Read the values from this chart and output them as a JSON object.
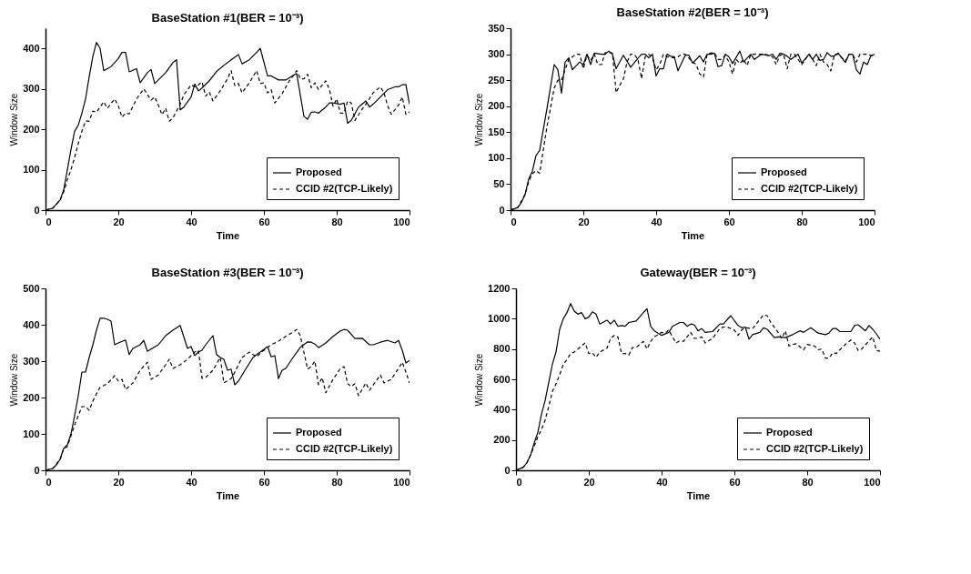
{
  "chart_data": [
    {
      "type": "line",
      "title": "BaseStation #1(BER = 10⁻³)",
      "xlabel": "Time",
      "ylabel": "Window Size",
      "xlim": [
        0,
        100
      ],
      "xticks": [
        0,
        20,
        40,
        60,
        80,
        100
      ],
      "ylim": [
        0,
        450
      ],
      "yticks": [
        0,
        100,
        200,
        300,
        400
      ],
      "legend": "bottom right",
      "series": [
        {
          "name": "Proposed",
          "color": "#000000",
          "line_style": "solid",
          "x": [
            0,
            2,
            4,
            5,
            6,
            7,
            8,
            9,
            10,
            11,
            12,
            13,
            14,
            15,
            16,
            17,
            18,
            19,
            20,
            21,
            22,
            23,
            25,
            26,
            28,
            29,
            30,
            31,
            33,
            35,
            36,
            37,
            38,
            40,
            41,
            42,
            43,
            45,
            47,
            49,
            51,
            53,
            54,
            56,
            58,
            59,
            61,
            62,
            64,
            66,
            68,
            69,
            71,
            72,
            73,
            74,
            75,
            77,
            78,
            79,
            81,
            82,
            83,
            84,
            86,
            88,
            89,
            90,
            92,
            94,
            96,
            97,
            98,
            99,
            100
          ],
          "values": [
            0,
            5,
            25,
            50,
            100,
            150,
            195,
            210,
            240,
            275,
            330,
            380,
            415,
            400,
            345,
            350,
            355,
            365,
            375,
            390,
            390,
            342,
            350,
            315,
            340,
            348,
            313,
            322,
            340,
            365,
            372,
            248,
            255,
            280,
            312,
            295,
            302,
            320,
            343,
            358,
            372,
            385,
            362,
            372,
            390,
            400,
            332,
            332,
            322,
            322,
            333,
            338,
            232,
            225,
            242,
            243,
            240,
            255,
            265,
            265,
            262,
            265,
            215,
            222,
            255,
            270,
            255,
            262,
            280,
            298,
            305,
            305,
            310,
            310,
            262
          ]
        },
        {
          "name": "CCID #2(TCP-Likely)",
          "color": "#000000",
          "line_style": "dashed",
          "x": [
            0,
            2,
            4,
            5,
            6,
            7,
            8,
            9,
            10,
            11,
            12,
            13,
            14,
            16,
            17,
            19,
            20,
            21,
            22,
            23,
            25,
            27,
            29,
            30,
            31,
            32,
            33,
            34,
            35,
            37,
            38,
            40,
            41,
            42,
            43,
            44,
            45,
            46,
            48,
            50,
            51,
            52,
            53,
            54,
            56,
            58,
            59,
            60,
            61,
            62,
            63,
            65,
            67,
            69,
            70,
            71,
            72,
            73,
            74,
            75,
            77,
            78,
            79,
            80,
            81,
            82,
            83,
            84,
            85,
            87,
            88,
            90,
            92,
            93,
            94,
            95,
            97,
            98,
            99,
            100
          ],
          "values": [
            0,
            5,
            25,
            45,
            75,
            100,
            130,
            165,
            195,
            220,
            220,
            245,
            242,
            268,
            252,
            275,
            258,
            230,
            240,
            238,
            275,
            300,
            272,
            280,
            260,
            236,
            252,
            220,
            228,
            262,
            285,
            310,
            305,
            310,
            317,
            282,
            292,
            270,
            295,
            325,
            345,
            308,
            313,
            290,
            315,
            345,
            313,
            315,
            290,
            298,
            265,
            288,
            320,
            345,
            325,
            325,
            336,
            303,
            315,
            298,
            320,
            298,
            257,
            275,
            240,
            240,
            270,
            265,
            222,
            250,
            262,
            290,
            305,
            290,
            258,
            237,
            260,
            280,
            237,
            243
          ]
        }
      ]
    },
    {
      "type": "line",
      "title": "BaseStation #2(BER = 10⁻³)",
      "xlabel": "Time",
      "ylabel": "Window Size",
      "xlim": [
        0,
        100
      ],
      "xticks": [
        0,
        20,
        40,
        60,
        80,
        100
      ],
      "ylim": [
        0,
        350
      ],
      "yticks": [
        0,
        50,
        100,
        150,
        200,
        250,
        300,
        350
      ],
      "legend": "bottom right",
      "series": [
        {
          "name": "Proposed",
          "color": "#000000",
          "line_style": "solid",
          "x": [
            0,
            2,
            3,
            4,
            5,
            6,
            7,
            8,
            10,
            12,
            13,
            14,
            15,
            16,
            17,
            19,
            20,
            21,
            22,
            23,
            25,
            26,
            27,
            28,
            29,
            31,
            33,
            35,
            36,
            37,
            38,
            39,
            40,
            41,
            42,
            43,
            44,
            45,
            46,
            48,
            49,
            50,
            52,
            53,
            54,
            55,
            56,
            57,
            58,
            59,
            60,
            61,
            63,
            64,
            66,
            67,
            69,
            71,
            72,
            73,
            74,
            75,
            76,
            77,
            79,
            80,
            82,
            83,
            84,
            85,
            86,
            87,
            88,
            89,
            90,
            91,
            92,
            93,
            94,
            95,
            96,
            97,
            98,
            99,
            100
          ],
          "values": [
            0,
            5,
            15,
            30,
            60,
            75,
            105,
            115,
            195,
            280,
            270,
            225,
            285,
            293,
            270,
            285,
            280,
            300,
            280,
            302,
            300,
            300,
            306,
            300,
            272,
            298,
            275,
            292,
            300,
            300,
            293,
            300,
            258,
            272,
            272,
            300,
            296,
            295,
            268,
            298,
            298,
            283,
            297,
            285,
            300,
            300,
            302,
            276,
            278,
            300,
            295,
            282,
            306,
            285,
            300,
            290,
            300,
            297,
            300,
            290,
            302,
            300,
            296,
            290,
            300,
            283,
            300,
            290,
            300,
            288,
            290,
            303,
            296,
            297,
            302,
            293,
            284,
            300,
            300,
            270,
            262,
            285,
            280,
            297,
            300
          ]
        },
        {
          "name": "CCID #2(TCP-Likely)",
          "color": "#000000",
          "line_style": "dashed",
          "x": [
            0,
            2,
            4,
            5,
            6,
            7,
            8,
            10,
            12,
            13,
            14,
            15,
            16,
            17,
            18,
            19,
            20,
            21,
            22,
            23,
            24,
            25,
            26,
            27,
            28,
            29,
            30,
            31,
            32,
            33,
            34,
            35,
            36,
            37,
            38,
            39,
            40,
            41,
            42,
            43,
            45,
            46,
            47,
            48,
            50,
            51,
            52,
            53,
            54,
            55,
            56,
            57,
            58,
            59,
            60,
            61,
            62,
            63,
            64,
            65,
            66,
            68,
            70,
            72,
            73,
            74,
            75,
            76,
            77,
            78,
            80,
            82,
            83,
            84,
            85,
            86,
            87,
            88,
            89,
            90,
            92,
            93,
            94,
            95,
            96,
            97,
            98,
            100
          ],
          "values": [
            0,
            5,
            30,
            55,
            70,
            76,
            71,
            160,
            235,
            250,
            250,
            270,
            290,
            295,
            300,
            300,
            272,
            298,
            288,
            300,
            280,
            280,
            303,
            303,
            302,
            226,
            240,
            252,
            285,
            300,
            300,
            290,
            253,
            295,
            300,
            293,
            270,
            280,
            300,
            295,
            293,
            295,
            300,
            300,
            285,
            280,
            262,
            256,
            300,
            302,
            303,
            290,
            290,
            298,
            285,
            262,
            290,
            282,
            290,
            278,
            300,
            300,
            300,
            295,
            280,
            298,
            300,
            272,
            300,
            300,
            280,
            300,
            290,
            278,
            300,
            285,
            280,
            268,
            300,
            300,
            287,
            300,
            300,
            285,
            300,
            300,
            300,
            295
          ]
        }
      ]
    },
    {
      "type": "line",
      "title": "BaseStation #3(BER = 10⁻³)",
      "xlabel": "Time",
      "ylabel": "Window Size",
      "xlim": [
        0,
        100
      ],
      "xticks": [
        0,
        20,
        40,
        60,
        80,
        100
      ],
      "ylim": [
        0,
        500
      ],
      "yticks": [
        0,
        100,
        200,
        300,
        400,
        500
      ],
      "legend": "bottom right",
      "series": [
        {
          "name": "Proposed",
          "color": "#000000",
          "line_style": "solid",
          "x": [
            0,
            2,
            3,
            4,
            5,
            6,
            7,
            8,
            9,
            10,
            11,
            12,
            13,
            14,
            15,
            16,
            17,
            18,
            19,
            20,
            22,
            23,
            24,
            26,
            27,
            28,
            29,
            31,
            33,
            35,
            37,
            39,
            40,
            41,
            42,
            43,
            44,
            46,
            47,
            48,
            49,
            50,
            51,
            52,
            53,
            55,
            57,
            59,
            61,
            62,
            63,
            64,
            65,
            66,
            68,
            70,
            72,
            73,
            74,
            75,
            77,
            79,
            81,
            82,
            83,
            85,
            87,
            89,
            90,
            92,
            94,
            96,
            97,
            98,
            99,
            100
          ],
          "values": [
            0,
            5,
            15,
            30,
            60,
            70,
            100,
            150,
            205,
            270,
            270,
            310,
            345,
            385,
            418,
            418,
            415,
            410,
            345,
            350,
            358,
            318,
            335,
            345,
            357,
            327,
            333,
            345,
            370,
            385,
            398,
            335,
            340,
            315,
            325,
            330,
            345,
            370,
            318,
            310,
            305,
            275,
            278,
            235,
            245,
            278,
            310,
            325,
            340,
            312,
            315,
            252,
            275,
            280,
            310,
            338,
            353,
            352,
            347,
            337,
            350,
            368,
            383,
            387,
            385,
            362,
            363,
            345,
            345,
            352,
            357,
            350,
            357,
            330,
            295,
            302
          ]
        },
        {
          "name": "CCID #2(TCP-Likely)",
          "color": "#000000",
          "line_style": "dashed",
          "x": [
            0,
            2,
            4,
            5,
            6,
            7,
            8,
            9,
            10,
            11,
            12,
            13,
            14,
            15,
            17,
            19,
            20,
            21,
            22,
            24,
            26,
            28,
            29,
            31,
            33,
            34,
            35,
            37,
            39,
            41,
            42,
            43,
            44,
            46,
            48,
            49,
            51,
            52,
            54,
            56,
            57,
            58,
            60,
            62,
            64,
            66,
            68,
            69,
            70,
            72,
            73,
            74,
            75,
            76,
            77,
            79,
            81,
            82,
            83,
            84,
            85,
            86,
            88,
            89,
            91,
            92,
            93,
            95,
            97,
            98,
            99,
            100
          ],
          "values": [
            0,
            5,
            30,
            60,
            65,
            95,
            125,
            150,
            175,
            175,
            165,
            190,
            210,
            228,
            238,
            260,
            245,
            250,
            222,
            240,
            275,
            297,
            250,
            262,
            290,
            305,
            280,
            290,
            305,
            325,
            330,
            253,
            255,
            275,
            310,
            240,
            252,
            270,
            310,
            325,
            318,
            312,
            330,
            345,
            355,
            368,
            380,
            387,
            370,
            278,
            285,
            300,
            235,
            255,
            213,
            250,
            280,
            285,
            238,
            230,
            238,
            205,
            240,
            220,
            248,
            262,
            240,
            250,
            280,
            297,
            270,
            240
          ]
        }
      ]
    },
    {
      "type": "line",
      "title": "Gateway(BER = 10⁻³)",
      "xlabel": "Time",
      "ylabel": "Window Size",
      "xlim": [
        0,
        100
      ],
      "xticks": [
        0,
        20,
        40,
        60,
        80,
        100
      ],
      "ylim": [
        0,
        1200
      ],
      "yticks": [
        0,
        200,
        400,
        600,
        800,
        1000,
        1200
      ],
      "legend": "bottom right",
      "series": [
        {
          "name": "Proposed",
          "color": "#000000",
          "line_style": "solid",
          "x": [
            0,
            2,
            3,
            4,
            5,
            6,
            7,
            8,
            9,
            10,
            11,
            12,
            13,
            14,
            15,
            16,
            17,
            18,
            19,
            20,
            21,
            22,
            23,
            25,
            26,
            27,
            28,
            29,
            30,
            31,
            33,
            35,
            36,
            37,
            38,
            40,
            42,
            43,
            45,
            46,
            47,
            48,
            49,
            50,
            51,
            52,
            54,
            56,
            57,
            59,
            61,
            62,
            63,
            64,
            65,
            67,
            68,
            69,
            71,
            72,
            74,
            76,
            78,
            79,
            81,
            83,
            85,
            86,
            87,
            88,
            89,
            91,
            92,
            93,
            94,
            96,
            97,
            98,
            99,
            100
          ],
          "values": [
            0,
            20,
            50,
            100,
            180,
            250,
            370,
            460,
            580,
            700,
            780,
            930,
            1000,
            1040,
            1100,
            1050,
            1030,
            1040,
            1000,
            1010,
            1045,
            1030,
            965,
            990,
            965,
            990,
            950,
            955,
            950,
            975,
            985,
            1040,
            1065,
            950,
            920,
            890,
            910,
            950,
            975,
            975,
            950,
            965,
            960,
            920,
            935,
            910,
            915,
            965,
            965,
            1020,
            955,
            940,
            945,
            865,
            895,
            910,
            940,
            930,
            875,
            880,
            875,
            895,
            920,
            910,
            940,
            905,
            895,
            905,
            935,
            935,
            915,
            915,
            915,
            955,
            960,
            920,
            955,
            930,
            900,
            865
          ]
        },
        {
          "name": "CCID #2(TCP-Likely)",
          "color": "#000000",
          "line_style": "dashed",
          "x": [
            0,
            2,
            3,
            4,
            5,
            6,
            7,
            8,
            9,
            10,
            11,
            12,
            13,
            14,
            15,
            16,
            17,
            18,
            19,
            20,
            21,
            22,
            23,
            25,
            26,
            27,
            28,
            29,
            30,
            31,
            32,
            33,
            34,
            35,
            36,
            37,
            38,
            40,
            41,
            42,
            43,
            44,
            45,
            46,
            48,
            49,
            50,
            51,
            52,
            54,
            56,
            57,
            58,
            59,
            60,
            61,
            62,
            63,
            65,
            67,
            68,
            69,
            70,
            72,
            73,
            74,
            75,
            76,
            77,
            78,
            79,
            80,
            81,
            82,
            83,
            84,
            85,
            86,
            87,
            88,
            90,
            92,
            93,
            94,
            95,
            97,
            98,
            99,
            100
          ],
          "values": [
            0,
            20,
            50,
            100,
            160,
            220,
            270,
            330,
            420,
            520,
            570,
            630,
            700,
            730,
            770,
            780,
            800,
            820,
            840,
            770,
            775,
            745,
            780,
            805,
            870,
            890,
            880,
            770,
            770,
            760,
            810,
            810,
            830,
            850,
            800,
            850,
            880,
            910,
            905,
            925,
            880,
            840,
            855,
            850,
            910,
            870,
            870,
            880,
            840,
            870,
            935,
            945,
            945,
            935,
            925,
            890,
            925,
            940,
            935,
            995,
            1025,
            1020,
            975,
            910,
            870,
            920,
            820,
            830,
            835,
            815,
            795,
            830,
            825,
            820,
            795,
            800,
            740,
            740,
            775,
            770,
            820,
            860,
            840,
            790,
            800,
            855,
            880,
            790,
            785
          ]
        }
      ]
    }
  ]
}
